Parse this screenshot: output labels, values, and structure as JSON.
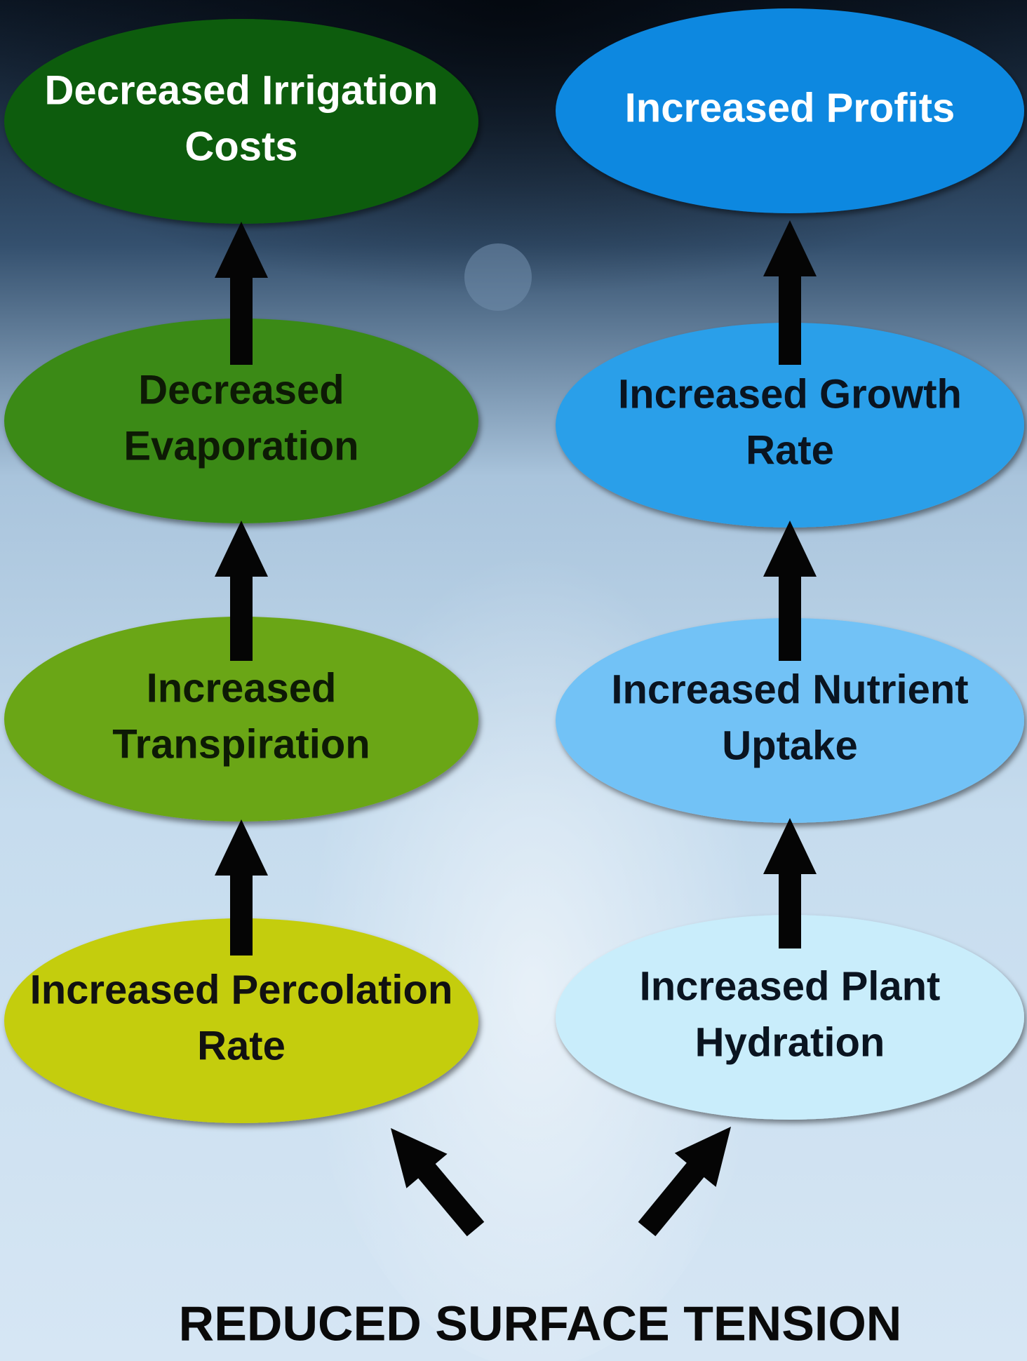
{
  "nodes": [
    {
      "lines": [
        "Decreased Irrigation",
        "Costs"
      ]
    },
    {
      "lines": [
        "Decreased",
        "Evaporation"
      ]
    },
    {
      "lines": [
        "Increased",
        "Transpiration"
      ]
    },
    {
      "lines": [
        "Increased Percolation",
        "Rate"
      ]
    },
    {
      "lines": [
        "Increased Profits"
      ]
    },
    {
      "lines": [
        "Increased Growth",
        "Rate"
      ]
    },
    {
      "lines": [
        "Increased Nutrient",
        "Uptake"
      ]
    },
    {
      "lines": [
        "Increased Plant",
        "Hydration"
      ]
    }
  ],
  "footer": {
    "title": "REDUCED SURFACE TENSION"
  }
}
